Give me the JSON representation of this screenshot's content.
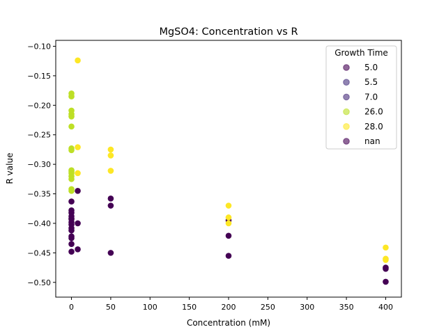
{
  "chart_data": {
    "type": "scatter",
    "title": "MgSO4: Concentration vs R",
    "xlabel": "Concentration (mM)",
    "ylabel": "R value",
    "xlim": [
      -20,
      420
    ],
    "ylim": [
      -0.525,
      -0.09
    ],
    "xticks": [
      0,
      50,
      100,
      150,
      200,
      250,
      300,
      350,
      400
    ],
    "yticks": [
      -0.1,
      -0.15,
      -0.2,
      -0.25,
      -0.3,
      -0.35,
      -0.4,
      -0.45,
      -0.5
    ],
    "xtick_labels": [
      "0",
      "50",
      "100",
      "150",
      "200",
      "250",
      "300",
      "350",
      "400"
    ],
    "ytick_labels": [
      "−0.10",
      "−0.15",
      "−0.20",
      "−0.25",
      "−0.30",
      "−0.35",
      "−0.40",
      "−0.45",
      "−0.50"
    ],
    "grid": false,
    "legend": {
      "title": "Growth Time",
      "placement": "top-right",
      "entries": [
        {
          "label": "5.0",
          "color": "#440154"
        },
        {
          "label": "5.5",
          "color": "#46327e"
        },
        {
          "label": "7.0",
          "color": "#472d7b"
        },
        {
          "label": "26.0",
          "color": "#bddf26"
        },
        {
          "label": "28.0",
          "color": "#fde725"
        },
        {
          "label": "nan",
          "color": "#440154"
        }
      ]
    },
    "series": [
      {
        "name": "5.0",
        "color": "#440154",
        "x": [
          0,
          0,
          0,
          0,
          0,
          0,
          0,
          0,
          0,
          0,
          0,
          0,
          0,
          0,
          8,
          8,
          8,
          50,
          50,
          50,
          200,
          200,
          200,
          400,
          400,
          400
        ],
        "y": [
          -0.363,
          -0.378,
          -0.382,
          -0.388,
          -0.392,
          -0.398,
          -0.402,
          -0.408,
          -0.412,
          -0.422,
          -0.425,
          -0.435,
          -0.448,
          -0.393,
          -0.345,
          -0.4,
          -0.444,
          -0.358,
          -0.37,
          -0.45,
          -0.395,
          -0.421,
          -0.455,
          -0.475,
          -0.477,
          -0.499
        ]
      },
      {
        "name": "5.5",
        "color": "#46327e",
        "x": [],
        "y": []
      },
      {
        "name": "7.0",
        "color": "#472d7b",
        "x": [],
        "y": []
      },
      {
        "name": "26.0",
        "color": "#bddf26",
        "x": [
          0,
          0,
          0,
          0,
          0,
          0,
          0,
          0,
          0,
          0,
          0,
          0,
          0,
          0,
          0
        ],
        "y": [
          -0.18,
          -0.185,
          -0.209,
          -0.215,
          -0.219,
          -0.236,
          -0.273,
          -0.276,
          -0.31,
          -0.312,
          -0.315,
          -0.32,
          -0.325,
          -0.342,
          -0.345
        ]
      },
      {
        "name": "28.0",
        "color": "#fde725",
        "x": [
          8,
          8,
          8,
          50,
          50,
          50,
          200,
          200,
          200,
          400,
          400,
          400
        ],
        "y": [
          -0.124,
          -0.271,
          -0.315,
          -0.275,
          -0.285,
          -0.311,
          -0.37,
          -0.39,
          -0.4,
          -0.441,
          -0.46,
          -0.462
        ]
      },
      {
        "name": "nan",
        "color": "#440154",
        "x": [],
        "y": []
      }
    ]
  }
}
